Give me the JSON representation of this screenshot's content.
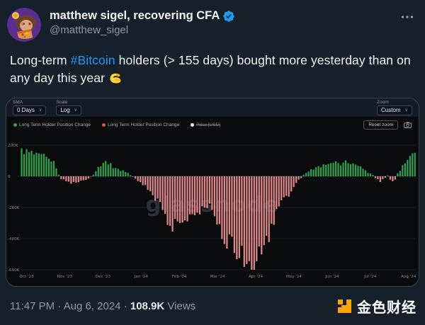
{
  "header": {
    "display_name": "matthew sigel, recovering CFA",
    "handle": "@matthew_sigel",
    "more_icon": "ellipsis",
    "verified_icon": "blue-checkmark",
    "avatar_desc": "monkey-with-coin-avatar"
  },
  "tweet": {
    "text_before": "Long-term ",
    "hashtag": "#Bitcoin",
    "text_after": " holders (> 155 days) bought more yesterday than on any day this year ",
    "emoji": "flexed-biceps"
  },
  "chart": {
    "controls": {
      "sma_label": "SMA",
      "sma_value": "0 Days",
      "scale_label": "Scale",
      "scale_value": "Log",
      "zoom_label": "Zoom",
      "zoom_value": "Custom",
      "caret": "∨",
      "reset_button": "Reset zoom",
      "camera_icon": "camera"
    },
    "legend": [
      {
        "label": "Long Term Holder Position Change",
        "color": "#2fa455",
        "disabled": false
      },
      {
        "label": "Long Term Holder Position Change",
        "color": "#e0524f",
        "disabled": false
      },
      {
        "label": "Price [USD]",
        "color": "#e8e8e8",
        "disabled": true
      }
    ]
  },
  "chart_data": {
    "type": "bar",
    "watermark": "glassnode",
    "categories": [
      "Oct '23",
      "Nov '23",
      "Dec '23",
      "Jan '24",
      "Feb '24",
      "Mar '24",
      "Apr '24",
      "May '24",
      "Jun '24",
      "Jul '24",
      "Aug '24"
    ],
    "unit": "thousand BTC",
    "ylabel": "",
    "xlabel": "",
    "ylim": [
      -650,
      220
    ],
    "grid": true,
    "legend_position": "top-left",
    "yticks": [
      {
        "value": 200,
        "label": "200K"
      },
      {
        "value": 0,
        "label": "0"
      },
      {
        "value": -200,
        "label": "-200K"
      },
      {
        "value": -400,
        "label": "-400K"
      },
      {
        "value": -600,
        "label": "-600K"
      }
    ],
    "bar_count": 160,
    "colors": {
      "positive": "#2e9e4f",
      "negative": "#e08888"
    },
    "envelope": [
      [
        0.0,
        168
      ],
      [
        0.012,
        158
      ],
      [
        0.025,
        149
      ],
      [
        0.04,
        133
      ],
      [
        0.055,
        127
      ],
      [
        0.068,
        112
      ],
      [
        0.08,
        96
      ],
      [
        0.088,
        55
      ],
      [
        0.094,
        8
      ],
      [
        0.1,
        -18
      ],
      [
        0.115,
        -32
      ],
      [
        0.13,
        -46
      ],
      [
        0.15,
        -28
      ],
      [
        0.165,
        -20
      ],
      [
        0.175,
        -8
      ],
      [
        0.183,
        18
      ],
      [
        0.195,
        55
      ],
      [
        0.21,
        96
      ],
      [
        0.222,
        86
      ],
      [
        0.235,
        56
      ],
      [
        0.25,
        42
      ],
      [
        0.265,
        28
      ],
      [
        0.276,
        12
      ],
      [
        0.286,
        -10
      ],
      [
        0.3,
        -36
      ],
      [
        0.315,
        -70
      ],
      [
        0.33,
        -120
      ],
      [
        0.345,
        -152
      ],
      [
        0.36,
        -225
      ],
      [
        0.374,
        -300
      ],
      [
        0.385,
        -340
      ],
      [
        0.395,
        -265
      ],
      [
        0.405,
        -295
      ],
      [
        0.415,
        -252
      ],
      [
        0.425,
        -285
      ],
      [
        0.437,
        -232
      ],
      [
        0.45,
        -215
      ],
      [
        0.463,
        -228
      ],
      [
        0.475,
        -185
      ],
      [
        0.487,
        -205
      ],
      [
        0.5,
        -300
      ],
      [
        0.515,
        -390
      ],
      [
        0.53,
        -432
      ],
      [
        0.545,
        -470
      ],
      [
        0.56,
        -520
      ],
      [
        0.575,
        -572
      ],
      [
        0.585,
        -600
      ],
      [
        0.595,
        -545
      ],
      [
        0.605,
        -485
      ],
      [
        0.615,
        -442
      ],
      [
        0.625,
        -400
      ],
      [
        0.635,
        -338
      ],
      [
        0.645,
        -268
      ],
      [
        0.653,
        -192
      ],
      [
        0.662,
        -150
      ],
      [
        0.675,
        -132
      ],
      [
        0.69,
        -82
      ],
      [
        0.7,
        -42
      ],
      [
        0.71,
        -12
      ],
      [
        0.72,
        16
      ],
      [
        0.732,
        36
      ],
      [
        0.745,
        52
      ],
      [
        0.758,
        66
      ],
      [
        0.77,
        76
      ],
      [
        0.782,
        86
      ],
      [
        0.792,
        95
      ],
      [
        0.802,
        84
      ],
      [
        0.812,
        74
      ],
      [
        0.825,
        90
      ],
      [
        0.84,
        80
      ],
      [
        0.85,
        64
      ],
      [
        0.862,
        72
      ],
      [
        0.872,
        46
      ],
      [
        0.882,
        20
      ],
      [
        0.892,
        8
      ],
      [
        0.902,
        -16
      ],
      [
        0.912,
        -36
      ],
      [
        0.922,
        -18
      ],
      [
        0.93,
        12
      ],
      [
        0.938,
        -26
      ],
      [
        0.947,
        -42
      ],
      [
        0.956,
        22
      ],
      [
        0.966,
        56
      ],
      [
        0.976,
        92
      ],
      [
        0.986,
        122
      ],
      [
        0.994,
        148
      ],
      [
        1.0,
        172
      ]
    ]
  },
  "footer": {
    "time": "11:47 PM",
    "separator": "·",
    "date": "Aug 6, 2024",
    "views_count": "108.9K",
    "views_label": "Views"
  },
  "brand": {
    "name": "金色财经",
    "color": "#f7a600",
    "icon": "golden-finance-logo"
  }
}
